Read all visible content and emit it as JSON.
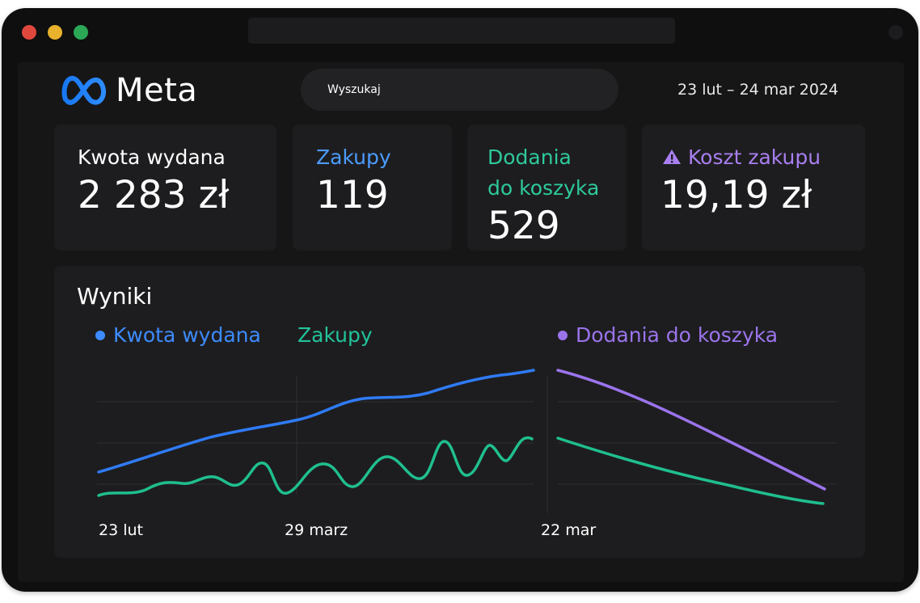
{
  "header": {
    "logo_text": "Meta",
    "search_label": "Wyszukaj",
    "date_range": "23 lut – 24 mar 2024"
  },
  "kpis": [
    {
      "label": "Kwota wydana",
      "value": "2 283 zł",
      "color": "#ffffff"
    },
    {
      "label": "Zakupy",
      "value": "119",
      "color": "#4b9bff"
    },
    {
      "label_line1": "Dodania",
      "label_line2": "do koszyka",
      "value": "529",
      "color": "#2ec99b"
    },
    {
      "label": "Koszt zakupu",
      "value": "19,19 zł",
      "color": "#a97ff0",
      "icon": "warning-icon"
    }
  ],
  "results": {
    "title": "Wyniki",
    "legend": [
      {
        "label": "Kwota wydana",
        "color": "#3d8bff",
        "dot": true
      },
      {
        "label": "Zakupy",
        "color": "#22c39a",
        "dot": false
      },
      {
        "label": "Dodania do koszyka",
        "color": "#9b74ec",
        "dot": true
      }
    ],
    "x_ticks": [
      "23 lut",
      "29 marz",
      "22 mar"
    ]
  },
  "chart_data": {
    "type": "line",
    "grid": true,
    "series": [
      {
        "name": "Kwota wydana",
        "color": "#2f7bf5",
        "values": [
          10,
          25,
          40,
          49,
          58,
          72,
          77,
          86,
          95
        ]
      },
      {
        "name": "Zakupy",
        "color": "#1fbf8e",
        "values": [
          4,
          10,
          14,
          20,
          22,
          26,
          30,
          36,
          44
        ]
      },
      {
        "name": "Dodania do koszyka",
        "color": "#9b74ec",
        "values": [
          95,
          80,
          62,
          40,
          8
        ]
      }
    ]
  }
}
